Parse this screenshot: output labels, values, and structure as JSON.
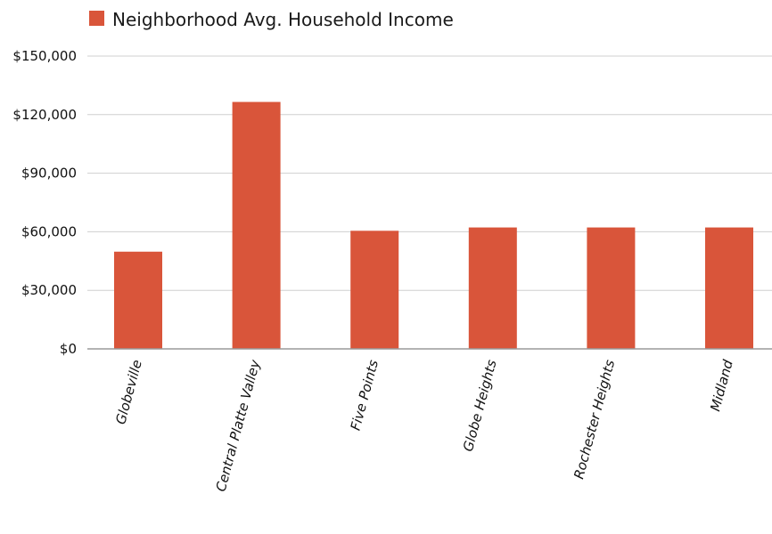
{
  "chart_data": {
    "type": "bar",
    "categories": [
      "Globeville",
      "Central Platte Valley",
      "Five Points",
      "Globe Heights",
      "Rochester Heights",
      "Midland"
    ],
    "series": [
      {
        "name": "Neighborhood Avg. Household Income",
        "values": [
          49800,
          126500,
          60500,
          62200,
          62200,
          62200
        ]
      }
    ],
    "title": "",
    "xlabel": "",
    "ylabel": "",
    "ylim": [
      0,
      150000
    ],
    "yticks": [
      0,
      30000,
      60000,
      90000,
      120000,
      150000
    ],
    "ytick_labels": [
      "$0",
      "$30,000",
      "$60,000",
      "$90,000",
      "$120,000",
      "$150,000"
    ],
    "grid": true,
    "legend_position": "top-left",
    "colors": {
      "bar": "#d9553a",
      "grid": "#cfcfcf",
      "axis": "#9a9a9a"
    }
  }
}
